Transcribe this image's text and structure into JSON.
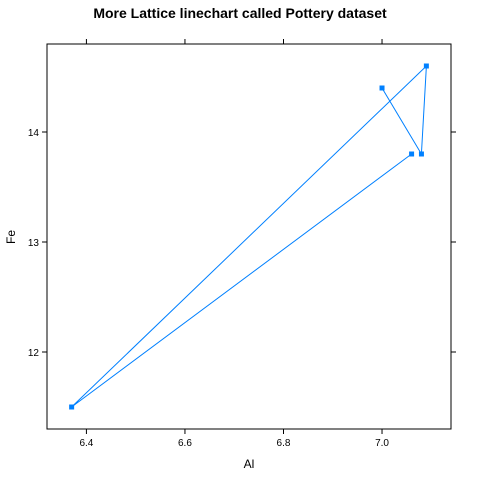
{
  "chart_data": {
    "type": "line",
    "title": "More Lattice linechart called Pottery dataset",
    "xlabel": "Al",
    "ylabel": "Fe",
    "xlim": [
      6.32,
      7.14
    ],
    "ylim": [
      11.3,
      14.8
    ],
    "x_ticks": [
      "6.4",
      "6.6",
      "6.8",
      "7.0"
    ],
    "y_ticks": [
      "12",
      "13",
      "14"
    ],
    "series": [
      {
        "color": "#0080ff",
        "marker": "square",
        "points": [
          {
            "x": 7.0,
            "y": 14.4
          },
          {
            "x": 7.08,
            "y": 13.8
          },
          {
            "x": 7.09,
            "y": 14.6
          },
          {
            "x": 6.37,
            "y": 11.5
          },
          {
            "x": 7.06,
            "y": 13.8
          }
        ]
      }
    ],
    "grid": false
  }
}
